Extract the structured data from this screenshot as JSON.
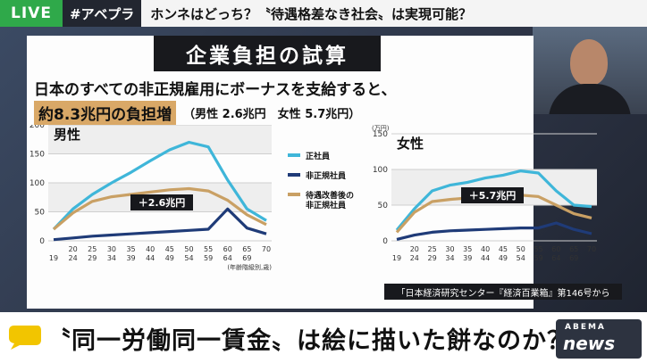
{
  "topbar": {
    "live": "LIVE",
    "hashtag": "#アベプラ",
    "headline": "ホンネはどっち？〝待遇格差なき社会〟は実現可能？"
  },
  "panel": {
    "title": "企業負担の試算",
    "subtitle": "日本のすべての非正規雇用にボーナスを支給すると、",
    "highlight": "約8.3兆円の負担増",
    "detail": "（男性 2.6兆円　女性 5.7兆円）",
    "source": "「日本経済研究センター『経済百業箱』第146号から"
  },
  "caption": "〝同一労働同一賃金〟は絵に描いた餅なのか？",
  "logo": {
    "line1": "ABEMA",
    "line2": "news"
  },
  "colors": {
    "regular": "#3fb6d9",
    "nonregular": "#1f3b78",
    "improved": "#c9a064",
    "highlight": "#d9a867",
    "live": "#2fa94a"
  },
  "chart_data": [
    {
      "type": "line",
      "title": "男性",
      "yunit": "(万円)",
      "xunit": "(年齢階級別,歳)",
      "ylim": [
        0,
        200
      ],
      "yticks": [
        0,
        50,
        100,
        150,
        200
      ],
      "x": [
        "19",
        "20-24",
        "25-29",
        "30-34",
        "35-39",
        "40-44",
        "45-49",
        "50-54",
        "55-59",
        "60-64",
        "65-69",
        "70"
      ],
      "series": [
        {
          "name": "正社員",
          "values": [
            20,
            55,
            80,
            100,
            118,
            138,
            157,
            170,
            162,
            105,
            55,
            35
          ]
        },
        {
          "name": "非正規社員",
          "values": [
            2,
            5,
            8,
            10,
            12,
            14,
            16,
            18,
            20,
            55,
            22,
            12
          ]
        },
        {
          "name": "待遇改善後の非正規社員",
          "values": [
            20,
            48,
            68,
            76,
            80,
            84,
            88,
            90,
            86,
            70,
            45,
            28
          ]
        }
      ],
      "annotation": "＋2.6兆円"
    },
    {
      "type": "line",
      "title": "女性",
      "yunit": "(万円)",
      "ylim": [
        0,
        150
      ],
      "yticks": [
        0,
        50,
        100,
        150
      ],
      "x": [
        "19",
        "20-24",
        "25-29",
        "30-34",
        "35-39",
        "40-44",
        "45-49",
        "50-54",
        "55-59",
        "60-64",
        "65-69",
        "70"
      ],
      "series": [
        {
          "name": "正社員",
          "values": [
            15,
            45,
            70,
            78,
            82,
            88,
            92,
            98,
            95,
            70,
            50,
            48
          ]
        },
        {
          "name": "非正規社員",
          "values": [
            2,
            8,
            12,
            14,
            15,
            16,
            17,
            18,
            18,
            25,
            16,
            10
          ]
        },
        {
          "name": "待遇改善後の非正規社員",
          "values": [
            12,
            40,
            55,
            58,
            60,
            62,
            63,
            64,
            62,
            50,
            38,
            32
          ]
        }
      ],
      "annotation": "＋5.7兆円"
    }
  ]
}
